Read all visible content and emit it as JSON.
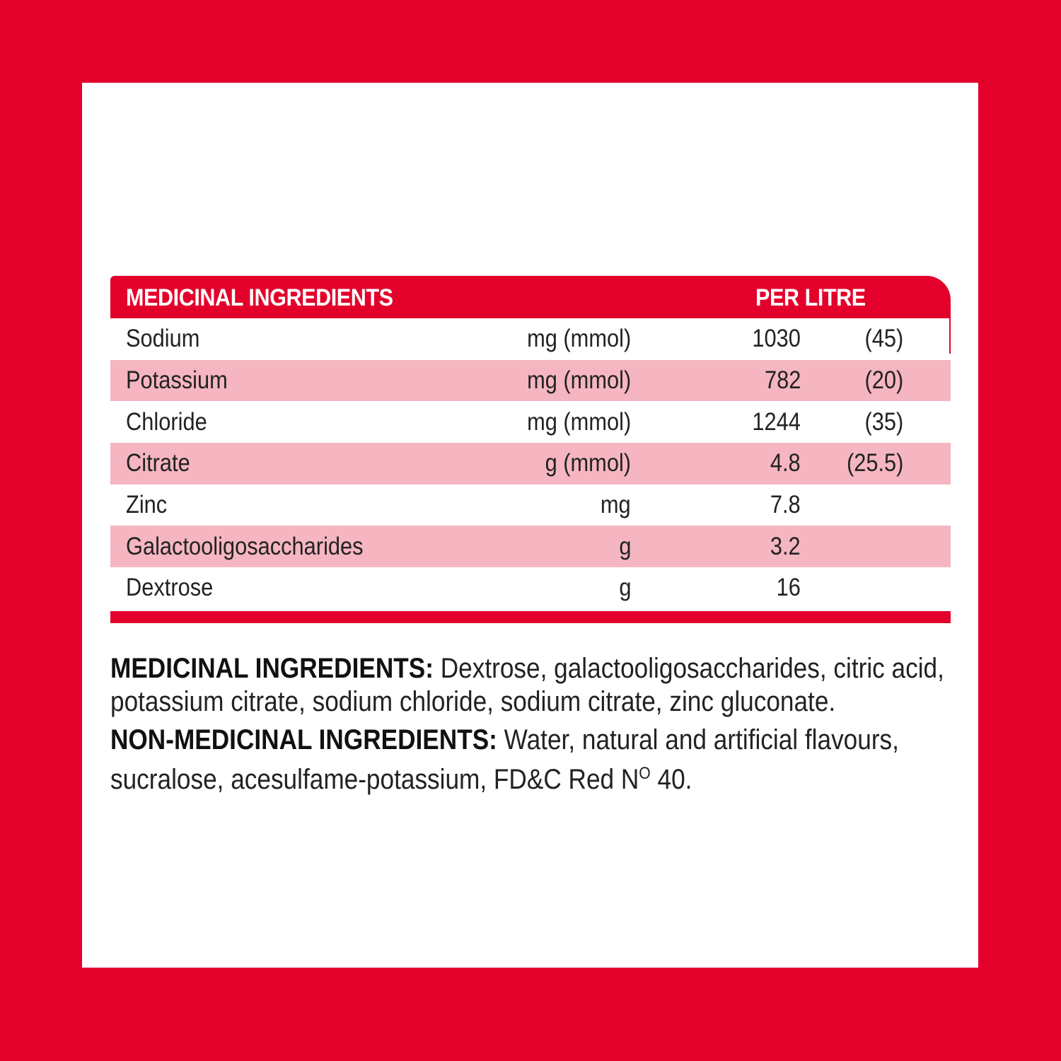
{
  "table": {
    "header_left": "MEDICINAL INGREDIENTS",
    "header_right": "PER LITRE",
    "rows": [
      {
        "name": "Sodium",
        "unit": "mg (mmol)",
        "value": "1030",
        "mmol": "(45)"
      },
      {
        "name": "Potassium",
        "unit": "mg (mmol)",
        "value": "782",
        "mmol": "(20)"
      },
      {
        "name": "Chloride",
        "unit": "mg (mmol)",
        "value": "1244",
        "mmol": "(35)"
      },
      {
        "name": "Citrate",
        "unit": "g (mmol)",
        "value": "4.8",
        "mmol": "(25.5)"
      },
      {
        "name": "Zinc",
        "unit": "mg",
        "value": "7.8",
        "mmol": ""
      },
      {
        "name": "Galactooligosaccharides",
        "unit": "g",
        "value": "3.2",
        "mmol": ""
      },
      {
        "name": "Dextrose",
        "unit": "g",
        "value": "16",
        "mmol": ""
      }
    ]
  },
  "notes": {
    "medicinal_label": "MEDICINAL INGREDIENTS:",
    "medicinal_text": " Dextrose, galactooligosaccharides, citric acid, potassium citrate, sodium chloride, sodium citrate, zinc gluconate.",
    "non_medicinal_label": "NON-MEDICINAL INGREDIENTS:",
    "non_medicinal_text": " Water, natural and artificial flavours, sucralose, acesulfame-potassium, FD&C Red N",
    "non_medicinal_sup": "O",
    "non_medicinal_tail": " 40."
  },
  "colors": {
    "brand_red": "#e3002b",
    "row_pink": "#f5b6c1"
  }
}
